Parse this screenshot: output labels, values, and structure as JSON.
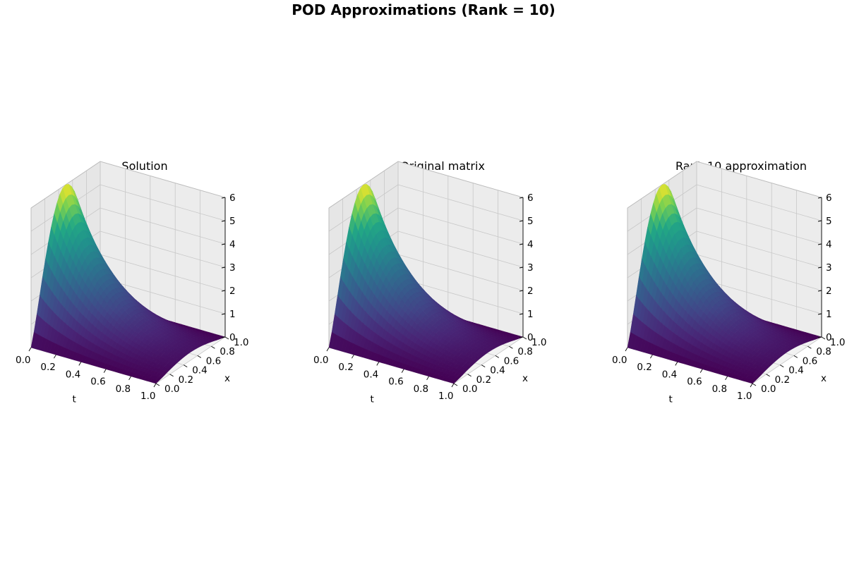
{
  "figure": {
    "title": "POD Approximations (Rank = 10)"
  },
  "chart_data": [
    {
      "type": "surface",
      "title": "Solution",
      "xlabel": "t",
      "ylabel": "x",
      "zlabel": "",
      "xlim": [
        0,
        1
      ],
      "ylim": [
        0,
        1
      ],
      "zlim": [
        0,
        6
      ],
      "xticks": [
        "0.0",
        "0.2",
        "0.4",
        "0.6",
        "0.8",
        "1.0"
      ],
      "yticks": [
        "0.0",
        "0.2",
        "0.4",
        "0.6",
        "0.8",
        "1.0"
      ],
      "zticks": [
        "0",
        "1",
        "2",
        "3",
        "4",
        "5",
        "6"
      ],
      "colormap": "viridis",
      "grid": true,
      "surface_samples": {
        "t": [
          0.0,
          0.1,
          0.2,
          0.3,
          0.4,
          0.5,
          0.6,
          0.7,
          0.8,
          0.9,
          1.0
        ],
        "z_max_over_x": [
          6.0,
          4.5,
          3.4,
          2.55,
          1.9,
          1.45,
          1.1,
          0.8,
          0.6,
          0.45,
          0.35
        ],
        "x_profile": "sin(pi*x), peak at x=0.5"
      }
    },
    {
      "type": "surface",
      "title": "Original matrix",
      "xlabel": "t",
      "ylabel": "x",
      "zlabel": "",
      "xlim": [
        0,
        1
      ],
      "ylim": [
        0,
        1
      ],
      "zlim": [
        0,
        6
      ],
      "xticks": [
        "0.0",
        "0.2",
        "0.4",
        "0.6",
        "0.8",
        "1.0"
      ],
      "yticks": [
        "0.0",
        "0.2",
        "0.4",
        "0.6",
        "0.8",
        "1.0"
      ],
      "zticks": [
        "0",
        "1",
        "2",
        "3",
        "4",
        "5",
        "6"
      ],
      "colormap": "viridis",
      "grid": true,
      "surface_samples": {
        "t": [
          0.0,
          0.1,
          0.2,
          0.3,
          0.4,
          0.5,
          0.6,
          0.7,
          0.8,
          0.9,
          1.0
        ],
        "z_max_over_x": [
          6.0,
          4.5,
          3.4,
          2.55,
          1.9,
          1.45,
          1.1,
          0.8,
          0.6,
          0.45,
          0.35
        ],
        "x_profile": "sin(pi*x), peak at x=0.5"
      }
    },
    {
      "type": "surface",
      "title": "Rank 10 approximation",
      "xlabel": "t",
      "ylabel": "x",
      "zlabel": "",
      "xlim": [
        0,
        1
      ],
      "ylim": [
        0,
        1
      ],
      "zlim": [
        0,
        6
      ],
      "xticks": [
        "0.0",
        "0.2",
        "0.4",
        "0.6",
        "0.8",
        "1.0"
      ],
      "yticks": [
        "0.0",
        "0.2",
        "0.4",
        "0.6",
        "0.8",
        "1.0"
      ],
      "zticks": [
        "0",
        "1",
        "2",
        "3",
        "4",
        "5",
        "6"
      ],
      "colormap": "viridis",
      "grid": true,
      "surface_samples": {
        "t": [
          0.0,
          0.1,
          0.2,
          0.3,
          0.4,
          0.5,
          0.6,
          0.7,
          0.8,
          0.9,
          1.0
        ],
        "z_max_over_x": [
          6.0,
          4.5,
          3.4,
          2.55,
          1.9,
          1.45,
          1.1,
          0.8,
          0.6,
          0.45,
          0.35
        ],
        "x_profile": "sin(pi*x), peak at x=0.5"
      }
    }
  ]
}
